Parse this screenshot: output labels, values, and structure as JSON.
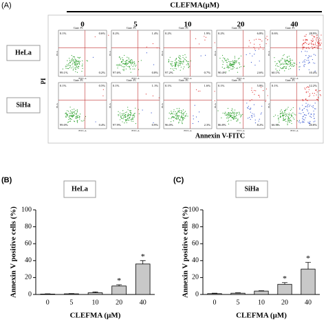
{
  "panel_a": {
    "label": "(A)",
    "treatment": "CLEFMA(μM)",
    "concentrations": [
      0,
      5,
      10,
      20,
      40
    ],
    "y_label": "PI",
    "x_label": "Annexin V-FITC",
    "gate": "Gate: P1",
    "plot_y_axis": "PI-A",
    "plot_x_axis": "FITC-A",
    "rows": [
      {
        "name": "HeLa",
        "quadrants": [
          [
            "0.1%",
            "0.6%",
            "99.1%",
            "0.2%"
          ],
          [
            "0.2%",
            "1.4%",
            "97.6%",
            "0.8%"
          ],
          [
            "0.2%",
            "1.9%",
            "97.2%",
            "0.7%"
          ],
          [
            "0.2%",
            "6.8%",
            "90.4%",
            "2.6%"
          ],
          [
            "0.6%",
            "28.9%",
            "60.1%",
            "10.4%"
          ]
        ]
      },
      {
        "name": "SiHa",
        "quadrants": [
          [
            "0.1%",
            "0.5%",
            "99.0%",
            "0.4%"
          ],
          [
            "0.1%",
            "1.1%",
            "97.9%",
            "0.9%"
          ],
          [
            "0.1%",
            "1.6%",
            "96.0%",
            "2.3%"
          ],
          [
            "0.1%",
            "5.8%",
            "86.8%",
            "8.2%"
          ],
          [
            "0.1%",
            "12.2%",
            "66.9%",
            "20.8%"
          ]
        ]
      }
    ]
  },
  "chart_data": [
    {
      "type": "bar",
      "panel_label": "(B)",
      "title": "HeLa",
      "categories": [
        0,
        5,
        10,
        20,
        40
      ],
      "values": [
        0.5,
        0.8,
        2,
        10,
        36
      ],
      "errors": [
        0.3,
        0.3,
        1,
        1.5,
        4
      ],
      "annotations": [
        null,
        null,
        null,
        "*",
        "*"
      ],
      "x_label": "CLEFMA (μM)",
      "y_label": "Annexin V positive cells (%)",
      "ylim": [
        0,
        100
      ],
      "yticks": [
        0,
        20,
        40,
        60,
        80,
        100
      ],
      "color": "#c8c8c8"
    },
    {
      "type": "bar",
      "panel_label": "(C)",
      "title": "SiHa",
      "categories": [
        0,
        5,
        10,
        20,
        40
      ],
      "values": [
        1,
        1.5,
        4,
        12,
        30
      ],
      "errors": [
        0.5,
        0.5,
        0.5,
        2,
        8
      ],
      "annotations": [
        null,
        null,
        null,
        "*",
        "*"
      ],
      "x_label": "CLEFMA (μM)",
      "y_label": "Annexin V positive cells (%)",
      "ylim": [
        0,
        100
      ],
      "yticks": [
        0,
        20,
        40,
        60,
        80,
        100
      ],
      "color": "#c8c8c8"
    }
  ]
}
